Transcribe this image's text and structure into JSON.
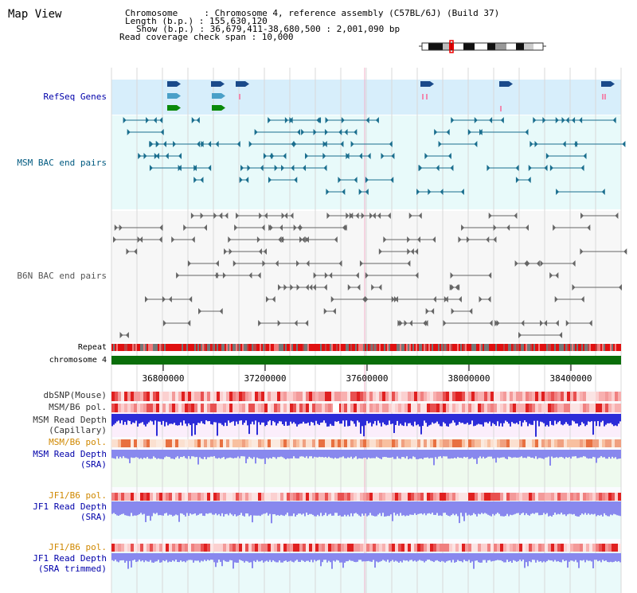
{
  "header": {
    "title": "Map View",
    "chromosome_line": "Chromosome     : Chromosome 4, reference assembly (C57BL/6J) (Build 37)",
    "length_line": "Length (b.p.) : 155,630,120",
    "show_line": "Show (b.p.) : 36,679,411-38,680,500 : 2,001,090 bp",
    "coverage_line": "Read coverage check span : 10,000"
  },
  "tracks": {
    "refseq": "RefSeq Genes",
    "msm_bac": "MSM BAC end pairs",
    "b6n_bac": "B6N BAC end pairs",
    "repeat": "Repeat",
    "chromosome": "chromosome 4",
    "dbsnp": "dbSNP(Mouse)",
    "msm_b6_pol": "MSM/B6 pol.",
    "msm_depth_cap_1": "MSM Read Depth",
    "msm_depth_cap_2": "(Capillary)",
    "msm_b6_pol_2": "MSM/B6 pol.",
    "msm_depth_sra_1": "MSM Read Depth",
    "msm_depth_sra_2": "(SRA)",
    "jf1_b6_pol": "JF1/B6 pol.",
    "jf1_depth_sra_1": "JF1 Read Depth",
    "jf1_depth_sra_2": "(SRA)",
    "jf1_b6_pol_2": "JF1/B6 pol.",
    "jf1_depth_trim_1": "JF1 Read Depth",
    "jf1_depth_trim_2": "(SRA trimmed)"
  },
  "axis": {
    "ticks": [
      "36800000",
      "37200000",
      "37600000",
      "38000000",
      "38400000"
    ]
  },
  "colors": {
    "refseq_bg": "#d7eefb",
    "msm_bg": "#e8fafa",
    "teal": "#1a6e8e",
    "gray": "#666666",
    "chrom": "#0a6e0a",
    "depth_blue": "#2c2cd8",
    "depth_light": "#8888ee",
    "label_blue": "#0000aa",
    "label_teal": "#005a80",
    "label_orange": "#d08800"
  }
}
